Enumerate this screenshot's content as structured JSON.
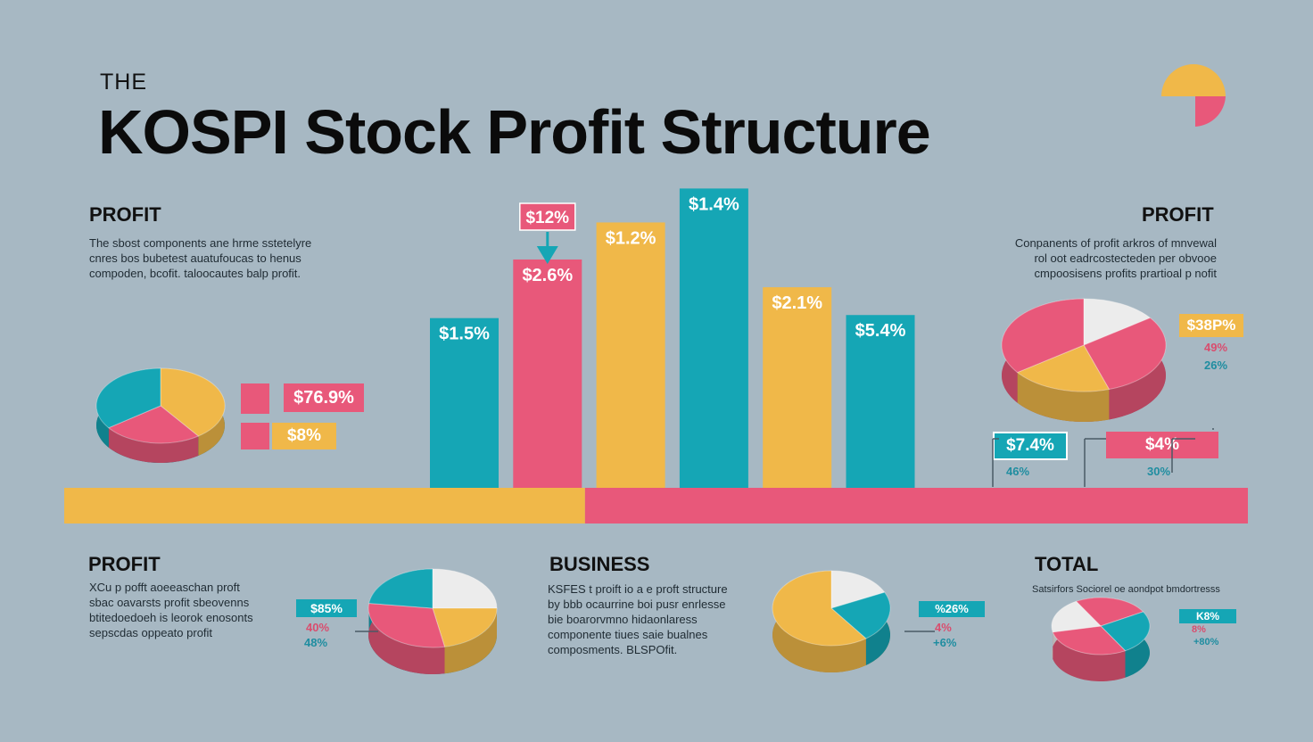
{
  "title": {
    "kicker": "THE",
    "main": "KOSPI Stock Profit Structure"
  },
  "colors": {
    "background": "#a7b8c3",
    "teal": "#15a6b5",
    "pink": "#e8587a",
    "yellow": "#f0b849",
    "white": "#ececec"
  },
  "sections": {
    "top_left": {
      "heading": "PROFIT",
      "lines": [
        "The sbost components ane hrme sstetelyre",
        "cnres bos bubetest auatufoucas to henus",
        "compoden, bcofit. taloocautes balp profit."
      ]
    },
    "top_right": {
      "heading": "PROFIT",
      "lines": [
        "Conpanents of profit arkros of mnvewal",
        "rol oot eadrcostecteden per obvooe",
        "cmpoosisens profits  prartioal p nofit"
      ]
    },
    "bottom_left": {
      "heading": "PROFIT",
      "lines": [
        "XCu p pofft aoeeaschan proft",
        "sbac oavarsts profit sbeovenns",
        "btitedoedoeh is leorok enosonts",
        "sepscdas oppeato profit"
      ]
    },
    "bottom_middle": {
      "heading": "BUSINESS",
      "lines": [
        "KSFES t proift io a e proft structure",
        "by bbb ocaurrine boi pusr enrlesse",
        "bie boarorvmno hidaonlaress",
        "componente tiues saie bualnes",
        "composments. BLSPOfit."
      ]
    },
    "bottom_right": {
      "heading": "TOTAL",
      "lines": [
        "Satsirfors Sociorel oe aondpot bmdortresss"
      ]
    }
  },
  "chart_data": [
    {
      "type": "bar",
      "title": "",
      "categories": [
        "",
        "",
        "",
        "",
        "",
        ""
      ],
      "values": [
        55,
        74,
        86,
        97,
        65,
        56
      ],
      "bar_colors": [
        "#15a6b5",
        "#e8587a",
        "#f0b849",
        "#15a6b5",
        "#f0b849",
        "#15a6b5"
      ],
      "data_labels": [
        "$1.5%",
        "$2.6%",
        "$1.2%",
        "$1.4%",
        "$2.1%",
        "$5.4%"
      ],
      "callout": {
        "label": "$12%",
        "bar_index": 1,
        "color": "#e8587a"
      },
      "ylim": [
        0,
        100
      ],
      "axis_band": {
        "left_color": "#f0b849",
        "right_color": "#e8587a",
        "split": 0.44
      }
    },
    {
      "type": "pie",
      "title": "",
      "slices": [
        {
          "value": 40,
          "color": "#f0b849"
        },
        {
          "value": 25,
          "color": "#e8587a"
        },
        {
          "value": 35,
          "color": "#15a6b5"
        }
      ],
      "labels": [
        "$76.9%",
        "$8%"
      ]
    },
    {
      "type": "pie",
      "title": "",
      "slices": [
        {
          "value": 15,
          "color": "#ececec"
        },
        {
          "value": 30,
          "color": "#e8587a"
        },
        {
          "value": 20,
          "color": "#f0b849"
        },
        {
          "value": 35,
          "color": "#e8587a"
        }
      ],
      "labels": [
        "$38P%",
        "49%",
        "26%",
        "$7.4%",
        "46%",
        "$4%",
        "30%"
      ]
    },
    {
      "type": "pie",
      "title": "",
      "slices": [
        {
          "value": 25,
          "color": "#ececec"
        },
        {
          "value": 22,
          "color": "#f0b849"
        },
        {
          "value": 30,
          "color": "#e8587a"
        },
        {
          "value": 23,
          "color": "#15a6b5"
        }
      ],
      "labels": [
        "$85%",
        "40%",
        "48%"
      ]
    },
    {
      "type": "pie",
      "title": "",
      "slices": [
        {
          "value": 18,
          "color": "#ececec"
        },
        {
          "value": 22,
          "color": "#15a6b5"
        },
        {
          "value": 60,
          "color": "#f0b849"
        }
      ],
      "labels": [
        "%26%",
        "4%",
        "+6%"
      ]
    },
    {
      "type": "pie",
      "title": "",
      "slices": [
        {
          "value": 25,
          "color": "#e8587a"
        },
        {
          "value": 25,
          "color": "#15a6b5"
        },
        {
          "value": 30,
          "color": "#e8587a"
        },
        {
          "value": 20,
          "color": "#ececec"
        }
      ],
      "labels": [
        "K8%",
        "8%",
        "+80%"
      ]
    }
  ]
}
